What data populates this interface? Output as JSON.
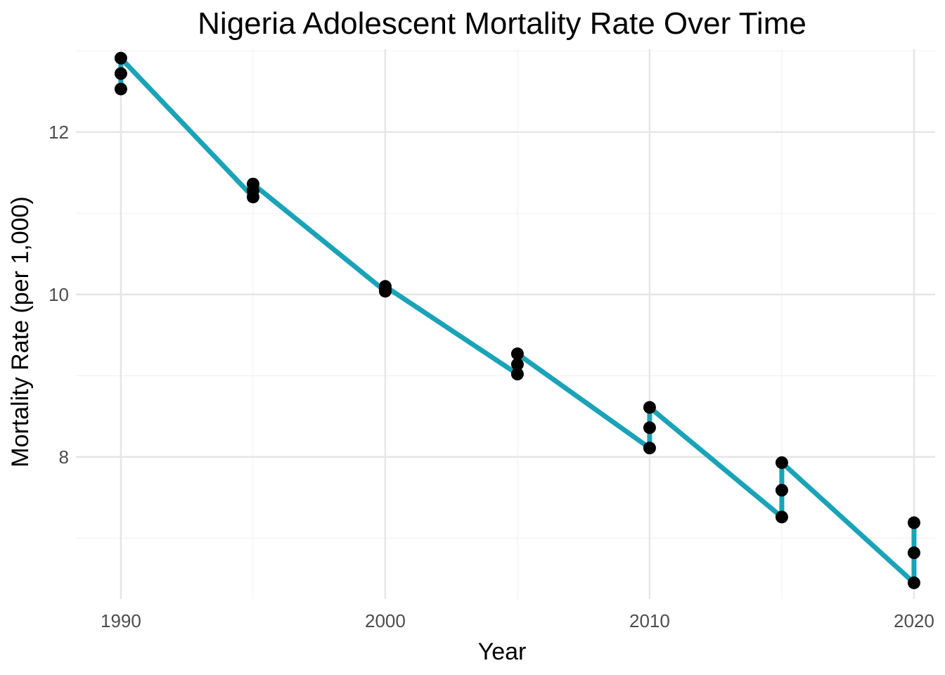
{
  "chart_data": {
    "type": "line",
    "title": "Nigeria Adolescent Mortality Rate Over Time",
    "xlabel": "Year",
    "ylabel": "Mortality Rate (per 1,000)",
    "xlim": [
      1988.3,
      2020.8
    ],
    "ylim": [
      6.25,
      13.02
    ],
    "x_ticks": [
      1990,
      2000,
      2010,
      2020
    ],
    "x_tick_labels": [
      "1990",
      "2000",
      "2010",
      "2020"
    ],
    "y_ticks": [
      8,
      10,
      12
    ],
    "y_tick_labels": [
      "8",
      "10",
      "12"
    ],
    "grid": true,
    "legend": "none",
    "colors": {
      "line": "#1aa3b8",
      "points": "#000000",
      "grid": "#e5e5e5"
    },
    "series": [
      {
        "x": [
          1990,
          1990,
          1990,
          1995,
          1995,
          1995,
          2000,
          2000,
          2000,
          2005,
          2005,
          2005,
          2010,
          2010,
          2010,
          2015,
          2015,
          2015,
          2020,
          2020,
          2020
        ],
        "y": [
          12.53,
          12.72,
          12.91,
          11.2,
          11.28,
          11.36,
          10.04,
          10.07,
          10.1,
          9.02,
          9.14,
          9.27,
          8.11,
          8.36,
          8.61,
          7.26,
          7.59,
          7.93,
          6.45,
          6.82,
          7.19
        ]
      }
    ]
  }
}
